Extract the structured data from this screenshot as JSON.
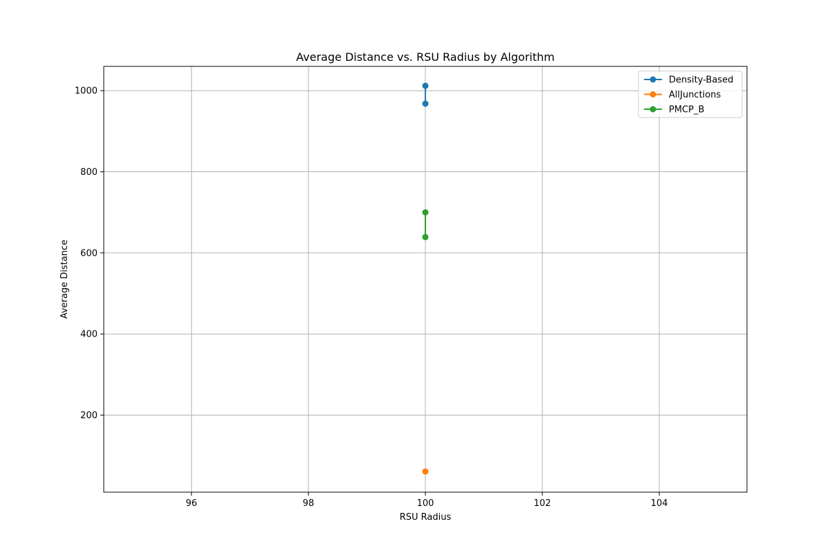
{
  "chart_data": {
    "type": "line",
    "title": "Average Distance vs. RSU Radius by Algorithm",
    "xlabel": "RSU Radius",
    "ylabel": "Average Distance",
    "xlim": [
      94.5,
      105.5
    ],
    "ylim": [
      10,
      1060
    ],
    "xticks": [
      96,
      98,
      100,
      102,
      104
    ],
    "yticks": [
      200,
      400,
      600,
      800,
      1000
    ],
    "grid": true,
    "legend_position": "top-right",
    "series": [
      {
        "name": "Density-Based",
        "color": "#1f77b4",
        "x": [
          100,
          100
        ],
        "y": [
          1012,
          968
        ]
      },
      {
        "name": "AllJunctions",
        "color": "#ff7f0e",
        "x": [
          100
        ],
        "y": [
          61
        ]
      },
      {
        "name": "PMCP_B",
        "color": "#2ca02c",
        "x": [
          100,
          100
        ],
        "y": [
          700,
          639
        ]
      }
    ]
  }
}
